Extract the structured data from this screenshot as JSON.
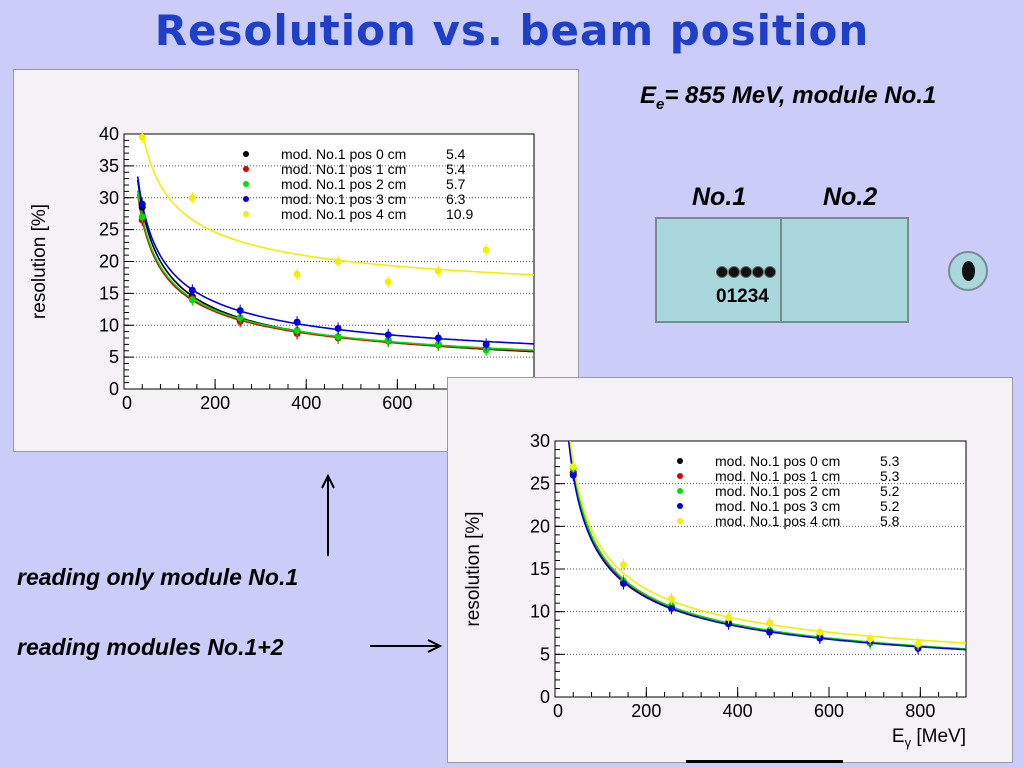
{
  "slide": {
    "title": "Resolution vs. beam position",
    "beam_info_main": "E",
    "beam_info_sub": "e",
    "beam_info_rest": "= 855 MeV, module No.1",
    "module_label_1": "No.1",
    "module_label_2": "No.2",
    "position_numbers": "01234",
    "note_module1": "reading only module No.1",
    "note_modules12": "reading modules No.1+2",
    "colors": {
      "background": "#ccccf8",
      "title": "#1f3fc8",
      "module": "#a8d8dc"
    }
  },
  "chart_data": [
    {
      "type": "scatter",
      "ylabel": "resolution [%]",
      "xlabel": "",
      "xlim": [
        0,
        900
      ],
      "ylim": [
        0,
        40
      ],
      "xticks": [
        0,
        200,
        400,
        600
      ],
      "yticks": [
        0,
        5,
        10,
        15,
        20,
        25,
        30,
        35,
        40
      ],
      "grid": "horizontal dotted",
      "legend_position": "top-right",
      "series": [
        {
          "name": "mod. No.1 pos 0 cm",
          "value": "5.4",
          "color": "#000000",
          "x": [
            40,
            150,
            255,
            380,
            470,
            580,
            690,
            795
          ],
          "y": [
            28.5,
            14.5,
            10.8,
            8.8,
            8.2,
            7.6,
            7.0,
            6.3
          ]
        },
        {
          "name": "mod. No.1 pos 1 cm",
          "value": "5.4",
          "color": "#e00000",
          "x": [
            40,
            150,
            255,
            380,
            470,
            580,
            690,
            795
          ],
          "y": [
            26.5,
            14.2,
            10.6,
            8.7,
            8.0,
            7.5,
            6.9,
            6.3
          ]
        },
        {
          "name": "mod. No.1 pos 2 cm",
          "value": "5.7",
          "color": "#00e000",
          "x": [
            40,
            150,
            255,
            380,
            470,
            580,
            690,
            795
          ],
          "y": [
            27.0,
            14.0,
            11.2,
            9.2,
            8.2,
            7.6,
            7.0,
            6.1
          ]
        },
        {
          "name": "mod. No.1 pos 3 cm",
          "value": "6.3",
          "color": "#0000e0",
          "x": [
            40,
            150,
            255,
            380,
            470,
            580,
            690,
            795
          ],
          "y": [
            29.0,
            15.5,
            12.3,
            10.5,
            9.5,
            8.5,
            8.0,
            7.0
          ]
        },
        {
          "name": "mod. No.1 pos 4 cm",
          "value": "10.9",
          "color": "#f0f000",
          "x": [
            40,
            150,
            380,
            470,
            580,
            690,
            795
          ],
          "y": [
            39.5,
            30.0,
            18.0,
            20.0,
            16.8,
            18.5,
            21.8
          ]
        }
      ]
    },
    {
      "type": "scatter",
      "ylabel": "resolution [%]",
      "xlabel_main": "E",
      "xlabel_sub": "γ",
      "xlabel_unit": " [MeV]",
      "xlim": [
        0,
        900
      ],
      "ylim": [
        0,
        30
      ],
      "xticks": [
        0,
        200,
        400,
        600,
        800
      ],
      "yticks": [
        0,
        5,
        10,
        15,
        20,
        25,
        30
      ],
      "grid": "horizontal dotted",
      "legend_position": "top-right",
      "series": [
        {
          "name": "mod. No.1 pos 0 cm",
          "value": "5.3",
          "color": "#000000",
          "x": [
            40,
            150,
            255,
            380,
            470,
            580,
            690,
            795
          ],
          "y": [
            26.3,
            13.5,
            10.5,
            8.6,
            7.7,
            7.0,
            6.5,
            5.8
          ]
        },
        {
          "name": "mod. No.1 pos 1 cm",
          "value": "5.3",
          "color": "#e00000",
          "x": [
            40,
            150,
            255,
            380,
            470,
            580,
            690,
            795
          ],
          "y": [
            26.2,
            13.4,
            10.6,
            8.6,
            7.7,
            7.0,
            6.5,
            5.8
          ]
        },
        {
          "name": "mod. No.1 pos 2 cm",
          "value": "5.2",
          "color": "#00e000",
          "x": [
            40,
            150,
            255,
            380,
            470,
            580,
            690,
            795
          ],
          "y": [
            26.8,
            13.6,
            10.7,
            8.8,
            7.8,
            7.2,
            6.3,
            5.9
          ]
        },
        {
          "name": "mod. No.1 pos 3 cm",
          "value": "5.2",
          "color": "#0000e0",
          "x": [
            40,
            150,
            255,
            380,
            470,
            580,
            690,
            795
          ],
          "y": [
            26.0,
            13.3,
            10.4,
            8.6,
            7.6,
            6.9,
            6.5,
            5.7
          ]
        },
        {
          "name": "mod. No.1 pos 4 cm",
          "value": "5.8",
          "color": "#f0f000",
          "x": [
            40,
            150,
            255,
            380,
            470,
            580,
            690,
            795
          ],
          "y": [
            27.0,
            15.5,
            11.5,
            9.3,
            8.7,
            7.6,
            6.8,
            6.2
          ]
        }
      ]
    }
  ]
}
